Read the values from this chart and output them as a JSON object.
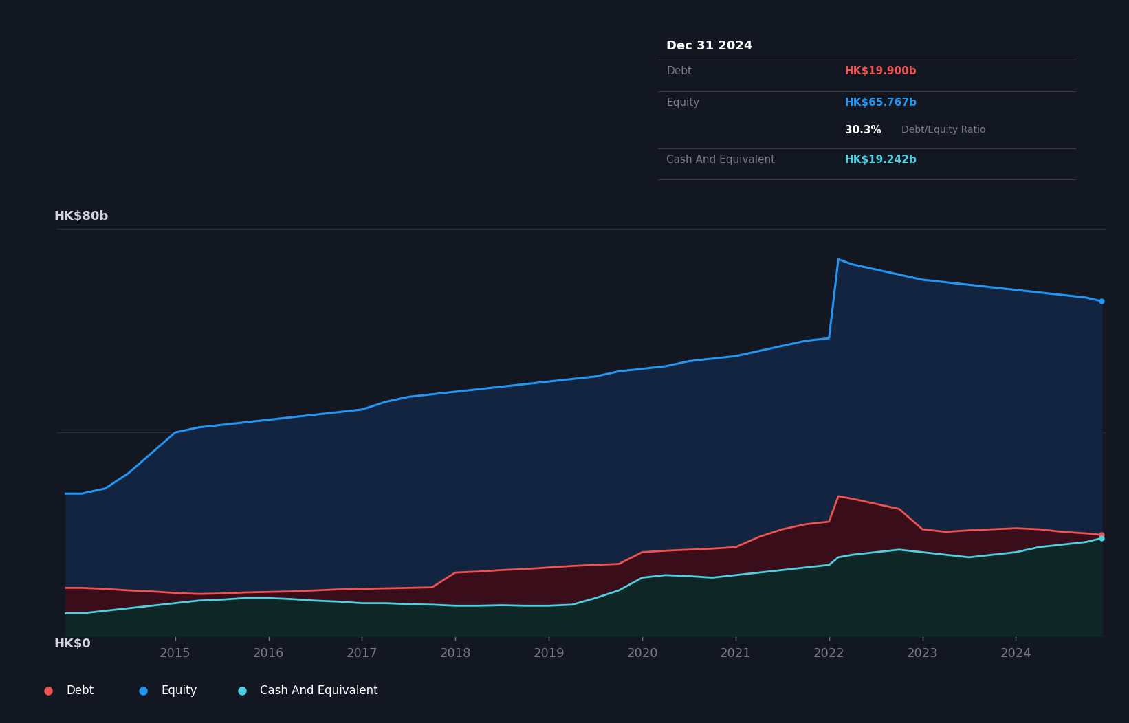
{
  "background_color": "#131722",
  "plot_bg_color": "#131722",
  "grid_color": "#2a2e39",
  "text_color": "#d1d4dc",
  "label_color": "#787b86",
  "ylim": [
    0,
    88
  ],
  "equity_color": "#2196F3",
  "equity_fill": "#132440",
  "debt_color": "#EF5350",
  "debt_fill": "#3a0d1a",
  "cash_color": "#4DD0E1",
  "cash_fill": "#0e2626",
  "years": [
    2013.83,
    2014.0,
    2014.25,
    2014.5,
    2014.75,
    2015.0,
    2015.25,
    2015.5,
    2015.75,
    2016.0,
    2016.25,
    2016.5,
    2016.75,
    2017.0,
    2017.25,
    2017.5,
    2017.75,
    2018.0,
    2018.25,
    2018.5,
    2018.75,
    2019.0,
    2019.25,
    2019.5,
    2019.75,
    2020.0,
    2020.25,
    2020.5,
    2020.75,
    2021.0,
    2021.25,
    2021.5,
    2021.75,
    2022.0,
    2022.1,
    2022.25,
    2022.5,
    2022.75,
    2023.0,
    2023.25,
    2023.5,
    2023.75,
    2024.0,
    2024.25,
    2024.5,
    2024.75,
    2024.92
  ],
  "equity": [
    28,
    28,
    29,
    32,
    36,
    40,
    41,
    41.5,
    42,
    42.5,
    43,
    43.5,
    44,
    44.5,
    46,
    47,
    47.5,
    48,
    48.5,
    49,
    49.5,
    50,
    50.5,
    51,
    52,
    52.5,
    53,
    54,
    54.5,
    55,
    56,
    57,
    58,
    58.5,
    74,
    73,
    72,
    71,
    70,
    69.5,
    69,
    68.5,
    68,
    67.5,
    67,
    66.5,
    65.767
  ],
  "debt": [
    9.5,
    9.5,
    9.3,
    9.0,
    8.8,
    8.5,
    8.3,
    8.4,
    8.6,
    8.7,
    8.8,
    9.0,
    9.2,
    9.3,
    9.4,
    9.5,
    9.6,
    12.5,
    12.7,
    13.0,
    13.2,
    13.5,
    13.8,
    14.0,
    14.2,
    16.5,
    16.8,
    17.0,
    17.2,
    17.5,
    19.5,
    21,
    22,
    22.5,
    27.5,
    27,
    26,
    25,
    21,
    20.5,
    20.8,
    21,
    21.2,
    21,
    20.5,
    20.2,
    19.9
  ],
  "cash": [
    4.5,
    4.5,
    5.0,
    5.5,
    6.0,
    6.5,
    7.0,
    7.2,
    7.5,
    7.5,
    7.3,
    7.0,
    6.8,
    6.5,
    6.5,
    6.3,
    6.2,
    6.0,
    6.0,
    6.1,
    6.0,
    6.0,
    6.2,
    7.5,
    9.0,
    11.5,
    12.0,
    11.8,
    11.5,
    12.0,
    12.5,
    13.0,
    13.5,
    14.0,
    15.5,
    16.0,
    16.5,
    17.0,
    16.5,
    16.0,
    15.5,
    16.0,
    16.5,
    17.5,
    18.0,
    18.5,
    19.242
  ],
  "xtick_years": [
    2015,
    2016,
    2017,
    2018,
    2019,
    2020,
    2021,
    2022,
    2023,
    2024
  ],
  "tooltip": {
    "date": "Dec 31 2024",
    "debt_label": "Debt",
    "debt_value": "HK$19.900b",
    "equity_label": "Equity",
    "equity_value": "HK$65.767b",
    "ratio": "30.3%",
    "ratio_text": "Debt/Equity Ratio",
    "cash_label": "Cash And Equivalent",
    "cash_value": "HK$19.242b"
  },
  "legend_items": [
    "Debt",
    "Equity",
    "Cash And Equivalent"
  ],
  "legend_colors": [
    "#EF5350",
    "#2196F3",
    "#4DD0E1"
  ],
  "legend_bg": "#1e2130"
}
